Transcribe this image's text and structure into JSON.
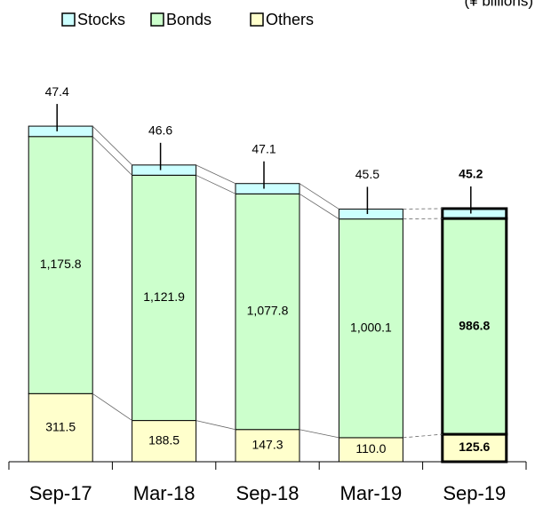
{
  "chart_data": {
    "type": "stacked-bar",
    "unit_label": "(¥ billions)",
    "categories": [
      "Sep-17",
      "Mar-18",
      "Sep-18",
      "Mar-19",
      "Sep-19"
    ],
    "series": [
      {
        "name": "Others",
        "color": "#ffffcc",
        "values": [
          311.5,
          188.5,
          147.3,
          110.0,
          125.6
        ],
        "value_labels": [
          "311.5",
          "188.5",
          "147.3",
          "110.0",
          "125.6"
        ]
      },
      {
        "name": "Bonds",
        "color": "#ccffcc",
        "values": [
          1175.8,
          1121.9,
          1077.8,
          1000.1,
          986.8
        ],
        "value_labels": [
          "1,175.8",
          "1,121.9",
          "1,077.8",
          "1,000.1",
          "986.8"
        ]
      },
      {
        "name": "Stocks",
        "color": "#ccffff",
        "values": [
          47.4,
          46.6,
          47.1,
          45.5,
          45.2
        ],
        "value_labels": [
          "47.4",
          "46.6",
          "47.1",
          "45.5",
          "45.2"
        ]
      }
    ],
    "legend_order": [
      2,
      1,
      0
    ],
    "ylim": [
      0,
      1600
    ]
  }
}
